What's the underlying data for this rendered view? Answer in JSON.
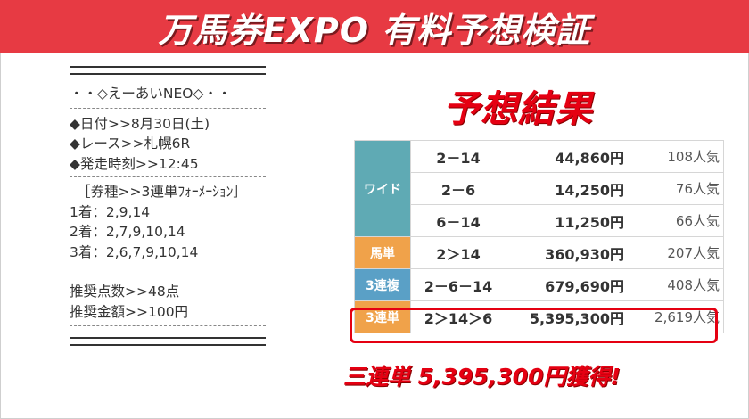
{
  "banner": {
    "title": "万馬券EXPO 有料予想検証"
  },
  "prediction": {
    "name_line": "・・◇えーあいNEO◇・・",
    "date_line": "◆日付>>8月30日(土)",
    "race_line": "◆レース>>札幌6R",
    "start_line": "◆発走時刻>>12:45",
    "ticket_type_line": "［券種>>3連単ﾌｫｰﾒｰｼｮﾝ］",
    "first_line": "1着：2,9,14",
    "second_line": "2着：2,7,9,10,14",
    "third_line": "3着：2,6,7,9,10,14",
    "points_line": "推奨点数>>48点",
    "amount_line": "推奨金額>>100円"
  },
  "result": {
    "heading": "予想結果",
    "rows": [
      {
        "category": "ワイド",
        "combo": "2－14",
        "payout": "44,860円",
        "popularity": "108人気"
      },
      {
        "category": "",
        "combo": "2－6",
        "payout": "14,250円",
        "popularity": "76人気"
      },
      {
        "category": "",
        "combo": "6－14",
        "payout": "11,250円",
        "popularity": "66人気"
      },
      {
        "category": "馬単",
        "combo": "2＞14",
        "payout": "360,930円",
        "popularity": "207人気"
      },
      {
        "category": "3連複",
        "combo": "2－6－14",
        "payout": "679,690円",
        "popularity": "408人気"
      },
      {
        "category": "3連単",
        "combo": "2＞14＞6",
        "payout": "5,395,300円",
        "popularity": "2,619人気"
      }
    ],
    "gain_text": "三連単 5,395,300円獲得!"
  },
  "colors": {
    "banner": "#e73a43",
    "accent_red": "#e50012",
    "wide": "#5faab4",
    "umatan": "#f0a24a",
    "sanrenpuku": "#5aa0c6",
    "sanrentan": "#f0a24a"
  }
}
